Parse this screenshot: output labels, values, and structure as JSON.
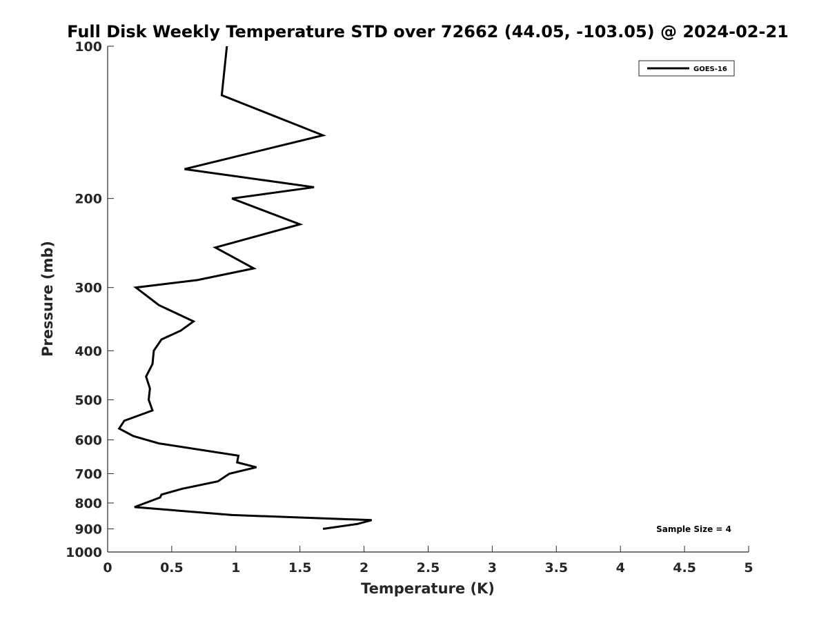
{
  "chart_data": {
    "type": "line",
    "title": "Full Disk Weekly Temperature STD over 72662 (44.05, -103.05) @ 2024-02-21",
    "xlabel": "Temperature (K)",
    "ylabel": "Pressure (mb)",
    "xlim": [
      0,
      5
    ],
    "ylim": [
      100,
      1000
    ],
    "y_scale": "log",
    "y_reversed": true,
    "grid": false,
    "legend_position": "top-right",
    "x_ticks": [
      "0",
      "0.5",
      "1",
      "1.5",
      "2",
      "2.5",
      "3",
      "3.5",
      "4",
      "4.5",
      "5"
    ],
    "y_ticks": [
      "100",
      "200",
      "300",
      "400",
      "500",
      "600",
      "700",
      "800",
      "900",
      "1000"
    ],
    "series": [
      {
        "name": "GOES-16",
        "color": "#000000",
        "points": [
          {
            "x": 0.93,
            "y": 100
          },
          {
            "x": 0.89,
            "y": 125
          },
          {
            "x": 1.68,
            "y": 150
          },
          {
            "x": 0.6,
            "y": 175
          },
          {
            "x": 1.61,
            "y": 190
          },
          {
            "x": 0.97,
            "y": 200
          },
          {
            "x": 1.5,
            "y": 225
          },
          {
            "x": 0.84,
            "y": 250
          },
          {
            "x": 1.14,
            "y": 275
          },
          {
            "x": 0.7,
            "y": 290
          },
          {
            "x": 0.22,
            "y": 300
          },
          {
            "x": 0.4,
            "y": 325
          },
          {
            "x": 0.67,
            "y": 350
          },
          {
            "x": 0.57,
            "y": 365
          },
          {
            "x": 0.42,
            "y": 380
          },
          {
            "x": 0.36,
            "y": 400
          },
          {
            "x": 0.35,
            "y": 425
          },
          {
            "x": 0.3,
            "y": 450
          },
          {
            "x": 0.33,
            "y": 475
          },
          {
            "x": 0.32,
            "y": 500
          },
          {
            "x": 0.35,
            "y": 525
          },
          {
            "x": 0.13,
            "y": 550
          },
          {
            "x": 0.09,
            "y": 570
          },
          {
            "x": 0.2,
            "y": 590
          },
          {
            "x": 0.4,
            "y": 610
          },
          {
            "x": 1.02,
            "y": 645
          },
          {
            "x": 1.01,
            "y": 665
          },
          {
            "x": 1.16,
            "y": 680
          },
          {
            "x": 0.95,
            "y": 700
          },
          {
            "x": 0.86,
            "y": 725
          },
          {
            "x": 0.58,
            "y": 750
          },
          {
            "x": 0.42,
            "y": 770
          },
          {
            "x": 0.41,
            "y": 780
          },
          {
            "x": 0.21,
            "y": 815
          },
          {
            "x": 0.97,
            "y": 845
          },
          {
            "x": 2.06,
            "y": 865
          },
          {
            "x": 1.95,
            "y": 880
          },
          {
            "x": 1.68,
            "y": 900
          }
        ]
      }
    ],
    "legend_entries": [
      "GOES-16"
    ],
    "annotations": [
      "Sample Size = 4"
    ]
  }
}
